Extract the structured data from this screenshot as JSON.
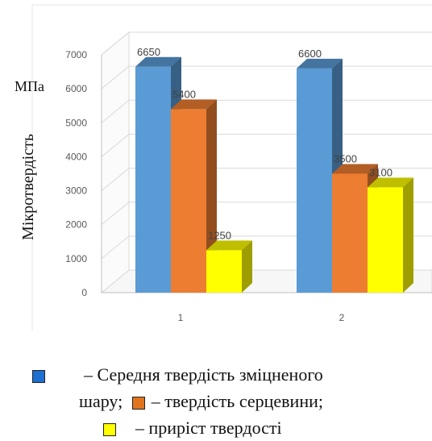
{
  "chart_data": {
    "type": "bar",
    "categories": [
      "1",
      "2"
    ],
    "series": [
      {
        "values": [
          6650,
          6600
        ],
        "labels": [
          "6650",
          "6600"
        ],
        "color": "#5b9bd5"
      },
      {
        "values": [
          5400,
          3500
        ],
        "labels": [
          "5400",
          "3500"
        ],
        "color": "#ed7d31"
      },
      {
        "values": [
          1250,
          3100
        ],
        "labels": [
          "1250",
          "3100"
        ],
        "color": "#ffff00"
      }
    ],
    "ylim": [
      0,
      7000
    ],
    "yticks": [
      "0",
      "1000",
      "2000",
      "3000",
      "4000",
      "5000",
      "6000",
      "7000"
    ],
    "ylabel": "Мікротвердість",
    "unit": "МПа",
    "grid": true,
    "style": "3d"
  },
  "legend": {
    "line1_text": "– Середня твердість зміцненого",
    "line2_prefix": "шару;",
    "line2_text": "– твердість серцевини;",
    "line3_text": "– приріст твердості",
    "colors": [
      "#1f6fd1",
      "#e2741e",
      "#ffff00"
    ]
  }
}
